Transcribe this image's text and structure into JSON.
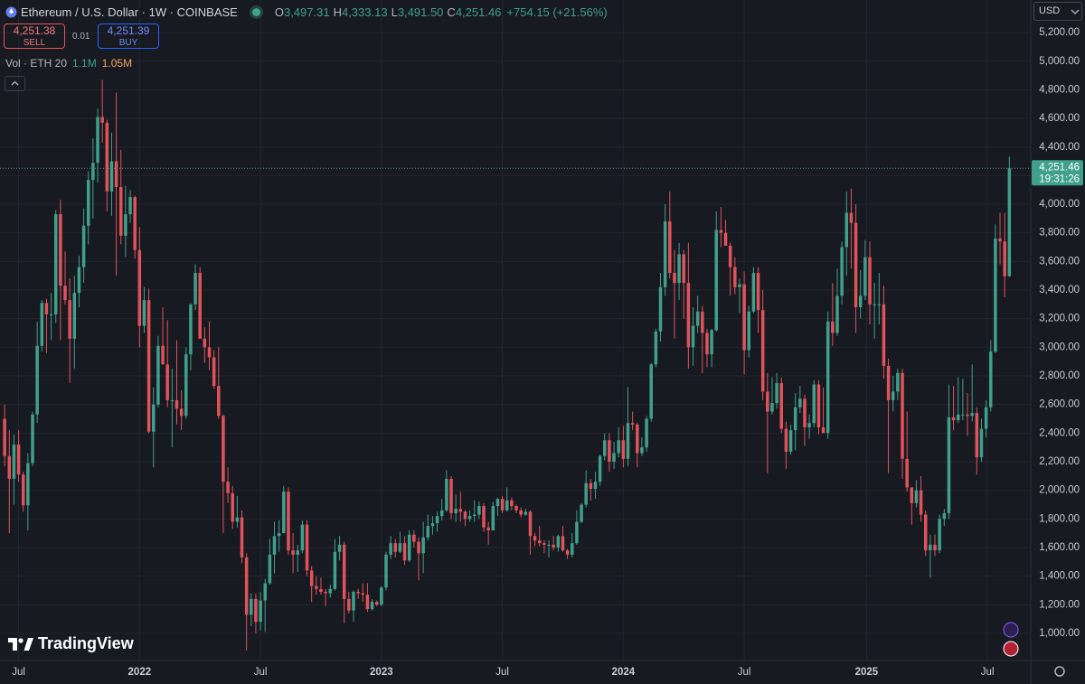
{
  "header": {
    "symbol": "Ethereum / U.S. Dollar · 1W · COINBASE",
    "ohlc_letters": [
      "O",
      "H",
      "L",
      "C"
    ],
    "ohlc_labels": [
      "3,497.31",
      "4,333.13",
      "3,491.50",
      "4,251.46"
    ],
    "change": "+754.15 (+21.56%)"
  },
  "trade": {
    "sell_price": "4,251.38",
    "sell": "SELL",
    "spread": "0.01",
    "buy_price": "4,251.39",
    "buy": "BUY"
  },
  "volume": {
    "label": "Vol · ETH 20",
    "value": "1.1M",
    "ma": "1.05M"
  },
  "currency": "USD",
  "logo": "TradingView",
  "countdown": "19:31:26",
  "chart_data": {
    "type": "candlestick",
    "up_color": "#3fa08c",
    "down_color": "#e0535b",
    "grid": true,
    "xlim": [
      -1,
      220.6
    ],
    "ylim": [
      810,
      5428
    ],
    "xticks": [
      {
        "value": 3,
        "label": "Jul"
      },
      {
        "value": 29,
        "label": "2022"
      },
      {
        "value": 55,
        "label": "Jul"
      },
      {
        "value": 81,
        "label": "2023"
      },
      {
        "value": 107,
        "label": "Jul"
      },
      {
        "value": 133,
        "label": "2024"
      },
      {
        "value": 159,
        "label": "Jul"
      },
      {
        "value": 185.3,
        "label": "2025"
      },
      {
        "value": 211.3,
        "label": "Jul"
      }
    ],
    "yticks": [
      {
        "value": 1000,
        "label": "1,000.00"
      },
      {
        "value": 1200,
        "label": "1,200.00"
      },
      {
        "value": 1400,
        "label": "1,400.00"
      },
      {
        "value": 1600,
        "label": "1,600.00"
      },
      {
        "value": 1800,
        "label": "1,800.00"
      },
      {
        "value": 2000,
        "label": "2,000.00"
      },
      {
        "value": 2200,
        "label": "2,200.00"
      },
      {
        "value": 2400,
        "label": "2,400.00"
      },
      {
        "value": 2600,
        "label": "2,600.00"
      },
      {
        "value": 2800,
        "label": "2,800.00"
      },
      {
        "value": 3000,
        "label": "3,000.00"
      },
      {
        "value": 3200,
        "label": "3,200.00"
      },
      {
        "value": 3400,
        "label": "3,400.00"
      },
      {
        "value": 3600,
        "label": "3,600.00"
      },
      {
        "value": 3800,
        "label": "3,800.00"
      },
      {
        "value": 4000,
        "label": "4,000.00"
      },
      {
        "value": 4200,
        "label": "4,200.00"
      },
      {
        "value": 4400,
        "label": "4,400.00"
      },
      {
        "value": 4600,
        "label": "4,600.00"
      },
      {
        "value": 4800,
        "label": "4,800.00"
      },
      {
        "value": 5000,
        "label": "5,000.00"
      },
      {
        "value": 5200,
        "label": "5,200.00"
      }
    ],
    "ohlc": [
      [
        2500,
        2600,
        2170,
        2240
      ],
      [
        2240,
        2420,
        1700,
        2080
      ],
      [
        2080,
        2390,
        1900,
        2320
      ],
      [
        2320,
        2420,
        2060,
        2110
      ],
      [
        2110,
        2130,
        1850,
        1895
      ],
      [
        1895,
        2260,
        1720,
        2190
      ],
      [
        2190,
        2550,
        2170,
        2530
      ],
      [
        2530,
        3180,
        2470,
        3010
      ],
      [
        3010,
        3330,
        2970,
        3310
      ],
      [
        3310,
        3340,
        2960,
        3230
      ],
      [
        3230,
        3380,
        3050,
        3230
      ],
      [
        3230,
        3960,
        3170,
        3930
      ],
      [
        3930,
        4030,
        3050,
        3430
      ],
      [
        3430,
        3670,
        3300,
        3330
      ],
      [
        3330,
        3480,
        2750,
        3060
      ],
      [
        3060,
        3500,
        2850,
        3380
      ],
      [
        3380,
        3640,
        3280,
        3560
      ],
      [
        3560,
        3970,
        3450,
        3850
      ],
      [
        3850,
        4230,
        3720,
        4170
      ],
      [
        4170,
        4460,
        3900,
        4290
      ],
      [
        4290,
        4670,
        4150,
        4610
      ],
      [
        4610,
        4870,
        4430,
        4570
      ],
      [
        4570,
        4590,
        3950,
        4090
      ],
      [
        4090,
        4500,
        3920,
        4300
      ],
      [
        4300,
        4780,
        3500,
        4120
      ],
      [
        4120,
        4380,
        3720,
        3780
      ],
      [
        3780,
        4130,
        3630,
        3930
      ],
      [
        3930,
        4100,
        3870,
        4050
      ],
      [
        4050,
        4060,
        3620,
        3680
      ],
      [
        3680,
        3840,
        3000,
        3150
      ],
      [
        3150,
        3420,
        3100,
        3330
      ],
      [
        3330,
        3410,
        2400,
        2410
      ],
      [
        2410,
        2720,
        2160,
        2600
      ],
      [
        2600,
        3080,
        2580,
        3010
      ],
      [
        3010,
        3280,
        2880,
        2880
      ],
      [
        2880,
        3190,
        2580,
        2630
      ],
      [
        2630,
        2850,
        2300,
        2630
      ],
      [
        2630,
        3050,
        2460,
        2570
      ],
      [
        2570,
        2700,
        2420,
        2520
      ],
      [
        2520,
        3000,
        2500,
        2950
      ],
      [
        2950,
        3310,
        2840,
        3300
      ],
      [
        3300,
        3580,
        3260,
        3520
      ],
      [
        3520,
        3560,
        3060,
        3060
      ],
      [
        3060,
        3140,
        2890,
        3000
      ],
      [
        3000,
        3180,
        2840,
        2930
      ],
      [
        2930,
        2980,
        2710,
        2730
      ],
      [
        2730,
        3000,
        2500,
        2520
      ],
      [
        2520,
        2530,
        1700,
        2060
      ],
      [
        2060,
        2160,
        1910,
        1980
      ],
      [
        1980,
        2030,
        1730,
        1780
      ],
      [
        1780,
        1960,
        1740,
        1810
      ],
      [
        1810,
        1860,
        1490,
        1530
      ],
      [
        1530,
        1560,
        880,
        1130
      ],
      [
        1130,
        1280,
        1050,
        1240
      ],
      [
        1240,
        1280,
        1000,
        1080
      ],
      [
        1080,
        1290,
        1020,
        1230
      ],
      [
        1230,
        1380,
        1010,
        1350
      ],
      [
        1350,
        1660,
        1340,
        1550
      ],
      [
        1550,
        1780,
        1420,
        1680
      ],
      [
        1680,
        1790,
        1570,
        1700
      ],
      [
        1700,
        2030,
        1700,
        1990
      ],
      [
        1990,
        2020,
        1550,
        1580
      ],
      [
        1580,
        1700,
        1420,
        1550
      ],
      [
        1550,
        1620,
        1430,
        1580
      ],
      [
        1580,
        1790,
        1560,
        1760
      ],
      [
        1760,
        1790,
        1400,
        1440
      ],
      [
        1440,
        1470,
        1220,
        1330
      ],
      [
        1330,
        1400,
        1270,
        1310
      ],
      [
        1310,
        1390,
        1270,
        1290
      ],
      [
        1290,
        1310,
        1190,
        1280
      ],
      [
        1280,
        1340,
        1250,
        1310
      ],
      [
        1310,
        1660,
        1300,
        1570
      ],
      [
        1570,
        1680,
        1510,
        1620
      ],
      [
        1620,
        1640,
        1070,
        1240
      ],
      [
        1240,
        1290,
        1140,
        1160
      ],
      [
        1160,
        1300,
        1080,
        1290
      ],
      [
        1290,
        1310,
        1240,
        1280
      ],
      [
        1280,
        1350,
        1220,
        1270
      ],
      [
        1270,
        1350,
        1150,
        1170
      ],
      [
        1170,
        1240,
        1160,
        1220
      ],
      [
        1220,
        1230,
        1190,
        1200
      ],
      [
        1200,
        1330,
        1190,
        1320
      ],
      [
        1320,
        1570,
        1300,
        1550
      ],
      [
        1550,
        1680,
        1520,
        1630
      ],
      [
        1630,
        1660,
        1530,
        1570
      ],
      [
        1570,
        1710,
        1560,
        1630
      ],
      [
        1630,
        1680,
        1480,
        1510
      ],
      [
        1510,
        1720,
        1500,
        1690
      ],
      [
        1690,
        1720,
        1600,
        1640
      ],
      [
        1640,
        1670,
        1370,
        1560
      ],
      [
        1560,
        1780,
        1420,
        1670
      ],
      [
        1670,
        1830,
        1650,
        1750
      ],
      [
        1750,
        1820,
        1690,
        1770
      ],
      [
        1770,
        1850,
        1710,
        1820
      ],
      [
        1820,
        1940,
        1790,
        1860
      ],
      [
        1860,
        2140,
        1850,
        2080
      ],
      [
        2080,
        2100,
        1800,
        1840
      ],
      [
        1840,
        1970,
        1780,
        1870
      ],
      [
        1870,
        1990,
        1780,
        1850
      ],
      [
        1850,
        1860,
        1750,
        1800
      ],
      [
        1800,
        1860,
        1780,
        1820
      ],
      [
        1820,
        1930,
        1780,
        1830
      ],
      [
        1830,
        1920,
        1800,
        1890
      ],
      [
        1890,
        1910,
        1710,
        1740
      ],
      [
        1740,
        1780,
        1620,
        1720
      ],
      [
        1720,
        1920,
        1720,
        1890
      ],
      [
        1890,
        1950,
        1820,
        1940
      ],
      [
        1940,
        1960,
        1840,
        1860
      ],
      [
        1860,
        2020,
        1850,
        1930
      ],
      [
        1930,
        1950,
        1860,
        1890
      ],
      [
        1890,
        1900,
        1840,
        1860
      ],
      [
        1860,
        1880,
        1810,
        1830
      ],
      [
        1830,
        1870,
        1820,
        1850
      ],
      [
        1850,
        1860,
        1550,
        1680
      ],
      [
        1680,
        1700,
        1610,
        1650
      ],
      [
        1650,
        1750,
        1610,
        1630
      ],
      [
        1630,
        1650,
        1560,
        1620
      ],
      [
        1620,
        1650,
        1530,
        1620
      ],
      [
        1620,
        1680,
        1580,
        1600
      ],
      [
        1600,
        1690,
        1570,
        1680
      ],
      [
        1680,
        1750,
        1570,
        1580
      ],
      [
        1580,
        1590,
        1520,
        1550
      ],
      [
        1550,
        1700,
        1530,
        1630
      ],
      [
        1630,
        1860,
        1620,
        1780
      ],
      [
        1780,
        1910,
        1770,
        1900
      ],
      [
        1900,
        2140,
        1880,
        2050
      ],
      [
        2050,
        2080,
        1930,
        2010
      ],
      [
        2010,
        2130,
        1940,
        2060
      ],
      [
        2060,
        2250,
        2030,
        2240
      ],
      [
        2240,
        2400,
        2210,
        2350
      ],
      [
        2350,
        2400,
        2130,
        2200
      ],
      [
        2200,
        2340,
        2150,
        2260
      ],
      [
        2260,
        2440,
        2230,
        2350
      ],
      [
        2350,
        2450,
        2160,
        2220
      ],
      [
        2220,
        2720,
        2170,
        2470
      ],
      [
        2470,
        2550,
        2420,
        2460
      ],
      [
        2460,
        2470,
        2160,
        2260
      ],
      [
        2260,
        2370,
        2240,
        2300
      ],
      [
        2300,
        2520,
        2270,
        2500
      ],
      [
        2500,
        2890,
        2480,
        2880
      ],
      [
        2880,
        3130,
        2860,
        3110
      ],
      [
        3110,
        3520,
        3040,
        3420
      ],
      [
        3420,
        4000,
        3360,
        3880
      ],
      [
        3880,
        4090,
        3480,
        3520
      ],
      [
        3520,
        3680,
        3060,
        3450
      ],
      [
        3450,
        3730,
        3330,
        3650
      ],
      [
        3650,
        3680,
        3200,
        3450
      ],
      [
        3450,
        3730,
        2850,
        3000
      ],
      [
        3000,
        3280,
        2870,
        3150
      ],
      [
        3150,
        3360,
        3100,
        3250
      ],
      [
        3250,
        3290,
        2820,
        3100
      ],
      [
        3100,
        3130,
        2860,
        2950
      ],
      [
        2950,
        3130,
        2860,
        3120
      ],
      [
        3120,
        3950,
        3110,
        3820
      ],
      [
        3820,
        3980,
        3700,
        3800
      ],
      [
        3800,
        3890,
        3710,
        3710
      ],
      [
        3710,
        3730,
        3360,
        3560
      ],
      [
        3560,
        3630,
        3370,
        3420
      ],
      [
        3420,
        3480,
        3240,
        3440
      ],
      [
        3440,
        3530,
        2810,
        2980
      ],
      [
        2980,
        3290,
        2930,
        3250
      ],
      [
        3250,
        3560,
        3240,
        3520
      ],
      [
        3520,
        3560,
        3100,
        3260
      ],
      [
        3260,
        3400,
        2630,
        2690
      ],
      [
        2690,
        2820,
        2120,
        2550
      ],
      [
        2550,
        2790,
        2530,
        2610
      ],
      [
        2610,
        2820,
        2570,
        2750
      ],
      [
        2750,
        2790,
        2400,
        2430
      ],
      [
        2430,
        2480,
        2150,
        2270
      ],
      [
        2270,
        2460,
        2250,
        2420
      ],
      [
        2420,
        2680,
        2280,
        2580
      ],
      [
        2580,
        2730,
        2540,
        2640
      ],
      [
        2640,
        2670,
        2310,
        2440
      ],
      [
        2440,
        2530,
        2360,
        2470
      ],
      [
        2470,
        2770,
        2440,
        2740
      ],
      [
        2740,
        2770,
        2390,
        2440
      ],
      [
        2440,
        2720,
        2400,
        2400
      ],
      [
        2400,
        3250,
        2360,
        3180
      ],
      [
        3180,
        3450,
        3010,
        3100
      ],
      [
        3100,
        3550,
        3080,
        3360
      ],
      [
        3360,
        3740,
        3300,
        3700
      ],
      [
        3700,
        4090,
        3500,
        3940
      ],
      [
        3940,
        4110,
        3550,
        3870
      ],
      [
        3870,
        4000,
        3100,
        3280
      ],
      [
        3280,
        3540,
        3200,
        3360
      ],
      [
        3360,
        3750,
        3330,
        3630
      ],
      [
        3630,
        3740,
        3160,
        3300
      ],
      [
        3300,
        3450,
        3060,
        3300
      ],
      [
        3300,
        3520,
        3160,
        3300
      ],
      [
        3300,
        3430,
        2780,
        2870
      ],
      [
        2870,
        2920,
        2120,
        2630
      ],
      [
        2630,
        2800,
        2550,
        2690
      ],
      [
        2690,
        2850,
        2630,
        2820
      ],
      [
        2820,
        2850,
        2080,
        2220
      ],
      [
        2220,
        2550,
        1990,
        2020
      ],
      [
        2020,
        2020,
        1760,
        1910
      ],
      [
        1910,
        2070,
        1880,
        2000
      ],
      [
        2000,
        2100,
        1780,
        1830
      ],
      [
        1830,
        1860,
        1540,
        1580
      ],
      [
        1580,
        1690,
        1390,
        1620
      ],
      [
        1620,
        1690,
        1540,
        1580
      ],
      [
        1580,
        1830,
        1560,
        1800
      ],
      [
        1800,
        1870,
        1750,
        1840
      ],
      [
        1840,
        2740,
        1800,
        2510
      ],
      [
        2510,
        2730,
        2420,
        2490
      ],
      [
        2490,
        2790,
        2470,
        2530
      ],
      [
        2530,
        2780,
        2490,
        2530
      ],
      [
        2530,
        2680,
        2380,
        2520
      ],
      [
        2520,
        2880,
        2480,
        2540
      ],
      [
        2540,
        2580,
        2110,
        2230
      ],
      [
        2230,
        2500,
        2200,
        2430
      ],
      [
        2430,
        2630,
        2370,
        2580
      ],
      [
        2580,
        3050,
        2550,
        2970
      ],
      [
        2970,
        3860,
        2960,
        3760
      ],
      [
        3760,
        3940,
        3580,
        3740
      ],
      [
        3740,
        3940,
        3350,
        3497.31
      ],
      [
        3497.31,
        4333.13,
        3491.5,
        4251.46
      ]
    ]
  }
}
